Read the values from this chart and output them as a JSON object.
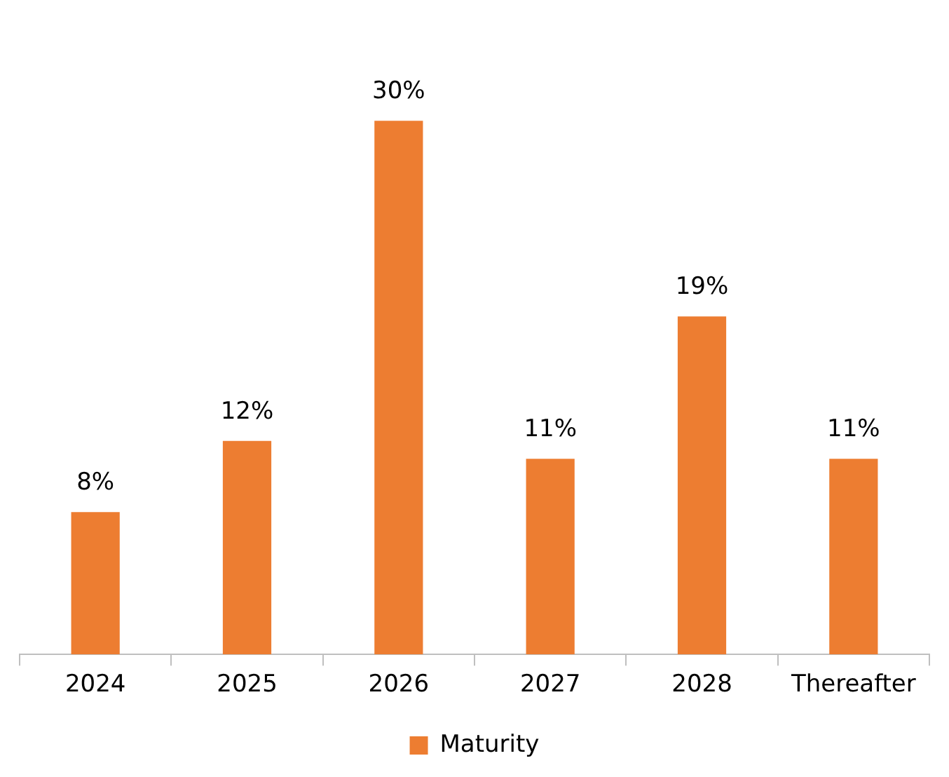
{
  "chart_data": {
    "type": "bar",
    "categories": [
      "2024",
      "2025",
      "2026",
      "2027",
      "2028",
      "Thereafter"
    ],
    "series": [
      {
        "name": "Maturity",
        "color": "#ed7d31",
        "values": [
          8,
          12,
          30,
          11,
          19,
          11
        ],
        "value_labels": [
          "8%",
          "12%",
          "30%",
          "11%",
          "19%",
          "11%"
        ]
      }
    ],
    "legend": "bottom",
    "grid": false
  }
}
